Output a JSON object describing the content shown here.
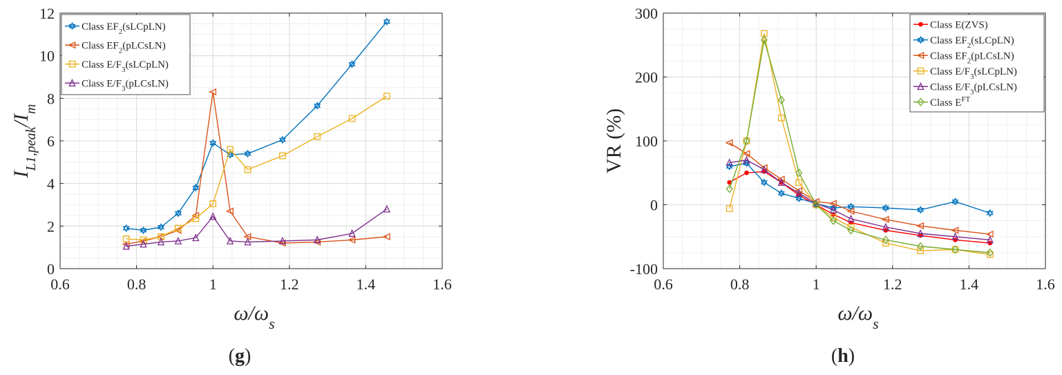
{
  "chart_data": [
    {
      "type": "line",
      "panel_label": "(g)",
      "panel_letter": "g",
      "xlabel": "ω/ω",
      "xlabel_sub": "s",
      "ylabel": "I",
      "ylabel_sub": "L1,peak",
      "ylabel_tail": "/I",
      "ylabel_tail_sub": "m",
      "xlim": [
        0.6,
        1.6
      ],
      "ylim": [
        0,
        12
      ],
      "xticks": [
        0.6,
        0.8,
        1,
        1.2,
        1.4,
        1.6
      ],
      "xtick_labels": [
        "0.6",
        "0.8",
        "1",
        "1.2",
        "1.4",
        "1.6"
      ],
      "yticks": [
        0,
        2,
        4,
        6,
        8,
        10,
        12
      ],
      "ytick_labels": [
        "0",
        "2",
        "4",
        "6",
        "8",
        "10",
        "12"
      ],
      "grid": true,
      "legend_position": "top-left",
      "series": [
        {
          "name": "Class EF",
          "name_sub": "2",
          "name_tail": "(sLCpLN)",
          "color": "#0072BD",
          "marker": "star",
          "x": [
            0.773,
            0.818,
            0.864,
            0.909,
            0.955,
            1.0,
            1.045,
            1.091,
            1.182,
            1.273,
            1.364,
            1.455
          ],
          "y": [
            1.9,
            1.8,
            1.95,
            2.6,
            3.8,
            5.9,
            5.35,
            5.4,
            6.05,
            7.65,
            9.6,
            11.6
          ]
        },
        {
          "name": "Class EF",
          "name_sub": "2",
          "name_tail": "(pLCsLN)",
          "color": "#D95319",
          "marker": "triangle-left",
          "x": [
            0.773,
            0.818,
            0.864,
            0.909,
            0.955,
            1.0,
            1.045,
            1.091,
            1.182,
            1.273,
            1.364,
            1.455
          ],
          "y": [
            1.15,
            1.3,
            1.5,
            1.8,
            2.5,
            8.3,
            2.7,
            1.5,
            1.2,
            1.25,
            1.35,
            1.5
          ]
        },
        {
          "name": "Class E/F",
          "name_sub": "3",
          "name_tail": "(sLCpLN)",
          "color": "#EDB120",
          "marker": "square",
          "x": [
            0.773,
            0.818,
            0.864,
            0.909,
            0.955,
            1.0,
            1.045,
            1.091,
            1.182,
            1.273,
            1.364,
            1.455
          ],
          "y": [
            1.4,
            1.35,
            1.5,
            1.9,
            2.35,
            3.05,
            5.6,
            4.65,
            5.3,
            6.2,
            7.05,
            8.1
          ]
        },
        {
          "name": "Class E/F",
          "name_sub": "3",
          "name_tail": "(pLCsLN)",
          "color": "#7E2F8E",
          "marker": "triangle-up",
          "x": [
            0.773,
            0.818,
            0.864,
            0.909,
            0.955,
            1.0,
            1.045,
            1.091,
            1.182,
            1.273,
            1.364,
            1.455
          ],
          "y": [
            1.05,
            1.15,
            1.25,
            1.3,
            1.45,
            2.45,
            1.3,
            1.25,
            1.3,
            1.35,
            1.65,
            2.8
          ]
        }
      ]
    },
    {
      "type": "line",
      "panel_label": "(h)",
      "panel_letter": "h",
      "xlabel": "ω/ω",
      "xlabel_sub": "s",
      "ylabel": "VR (%)",
      "xlim": [
        0.6,
        1.6
      ],
      "ylim": [
        -100,
        300
      ],
      "xticks": [
        0.6,
        0.8,
        1,
        1.2,
        1.4,
        1.6
      ],
      "xtick_labels": [
        "0.6",
        "0.8",
        "1",
        "1.2",
        "1.4",
        "1.6"
      ],
      "yticks": [
        -100,
        0,
        100,
        200,
        300
      ],
      "ytick_labels": [
        "-100",
        "0",
        "100",
        "200",
        "300"
      ],
      "grid": true,
      "legend_position": "top-right",
      "series": [
        {
          "name": "Class E(ZVS)",
          "color": "#FF0000",
          "marker": "dot",
          "x": [
            0.773,
            0.818,
            0.864,
            0.909,
            0.955,
            1.0,
            1.045,
            1.091,
            1.182,
            1.273,
            1.364,
            1.455
          ],
          "y": [
            35,
            50,
            52,
            35,
            15,
            0,
            -15,
            -28,
            -40,
            -48,
            -55,
            -60
          ]
        },
        {
          "name": "Class EF",
          "name_sub": "2",
          "name_tail": "(sLCpLN)",
          "color": "#0072BD",
          "marker": "star",
          "x": [
            0.773,
            0.818,
            0.864,
            0.909,
            0.955,
            1.0,
            1.045,
            1.091,
            1.182,
            1.273,
            1.364,
            1.455
          ],
          "y": [
            60,
            65,
            35,
            18,
            10,
            2,
            -5,
            -3,
            -5,
            -8,
            5,
            -13
          ]
        },
        {
          "name": "Class EF",
          "name_sub": "2",
          "name_tail": "(pLCsLN)",
          "color": "#D95319",
          "marker": "triangle-left",
          "x": [
            0.773,
            0.818,
            0.864,
            0.909,
            0.955,
            1.0,
            1.045,
            1.091,
            1.182,
            1.273,
            1.364,
            1.455
          ],
          "y": [
            97,
            80,
            58,
            40,
            22,
            5,
            2,
            -10,
            -23,
            -33,
            -40,
            -46
          ]
        },
        {
          "name": "Class E/F",
          "name_sub": "3",
          "name_tail": "(sLCpLN)",
          "color": "#EDB120",
          "marker": "square",
          "x": [
            0.773,
            0.818,
            0.864,
            0.909,
            0.955,
            1.0,
            1.045,
            1.091,
            1.182,
            1.273,
            1.364,
            1.455
          ],
          "y": [
            -6,
            100,
            268,
            136,
            35,
            0,
            -20,
            -35,
            -60,
            -72,
            -70,
            -78
          ]
        },
        {
          "name": "Class E/F",
          "name_sub": "3",
          "name_tail": "(pLCsLN)",
          "color": "#7E2F8E",
          "marker": "triangle-up",
          "x": [
            0.773,
            0.818,
            0.864,
            0.909,
            0.955,
            1.0,
            1.045,
            1.091,
            1.182,
            1.273,
            1.364,
            1.455
          ],
          "y": [
            66,
            70,
            55,
            35,
            18,
            2,
            -8,
            -22,
            -35,
            -45,
            -50,
            -55
          ]
        },
        {
          "name": "Class E",
          "name_sup": "FT",
          "color": "#77AC30",
          "marker": "diamond",
          "x": [
            0.773,
            0.818,
            0.864,
            0.909,
            0.955,
            1.0,
            1.045,
            1.091,
            1.182,
            1.273,
            1.364,
            1.455
          ],
          "y": [
            25,
            100,
            258,
            164,
            50,
            0,
            -25,
            -40,
            -55,
            -65,
            -70,
            -75
          ]
        }
      ]
    }
  ]
}
